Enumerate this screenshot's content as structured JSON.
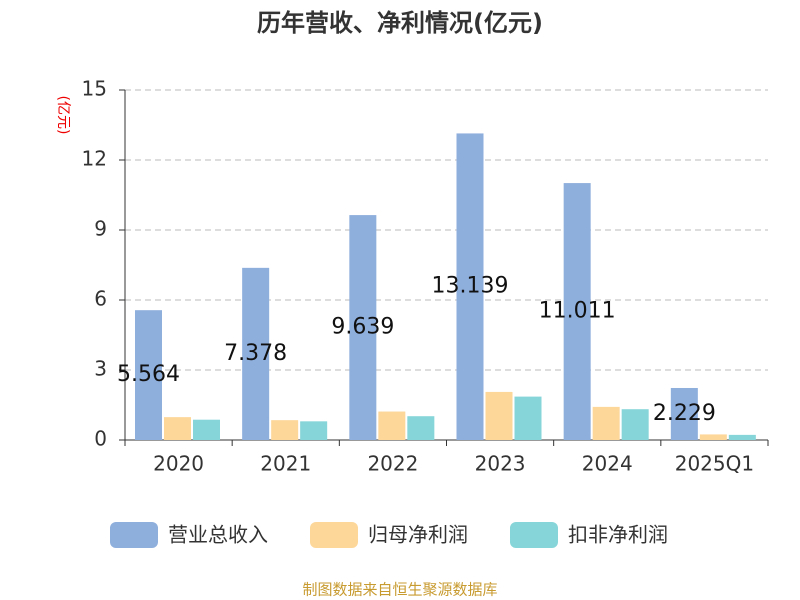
{
  "chart_data": {
    "type": "bar",
    "title": "历年营收、净利情况(亿元)",
    "y_label": "(亿元)",
    "categories": [
      "2020",
      "2021",
      "2022",
      "2023",
      "2024",
      "2025Q1"
    ],
    "series": [
      {
        "name": "营业总收入",
        "color": "#8eaedc",
        "values": [
          5.564,
          7.378,
          9.639,
          13.139,
          11.011,
          2.229
        ]
      },
      {
        "name": "归母净利润",
        "color": "#fdd79a",
        "values": [
          0.98,
          0.85,
          1.22,
          2.06,
          1.42,
          0.24
        ]
      },
      {
        "name": "扣非净利润",
        "color": "#86d5d8",
        "values": [
          0.87,
          0.8,
          1.02,
          1.86,
          1.32,
          0.22
        ]
      }
    ],
    "ylim": [
      0,
      15
    ],
    "yticks": [
      0,
      3,
      6,
      9,
      12,
      15
    ],
    "grid": true,
    "source": "制图数据来自恒生聚源数据库"
  }
}
